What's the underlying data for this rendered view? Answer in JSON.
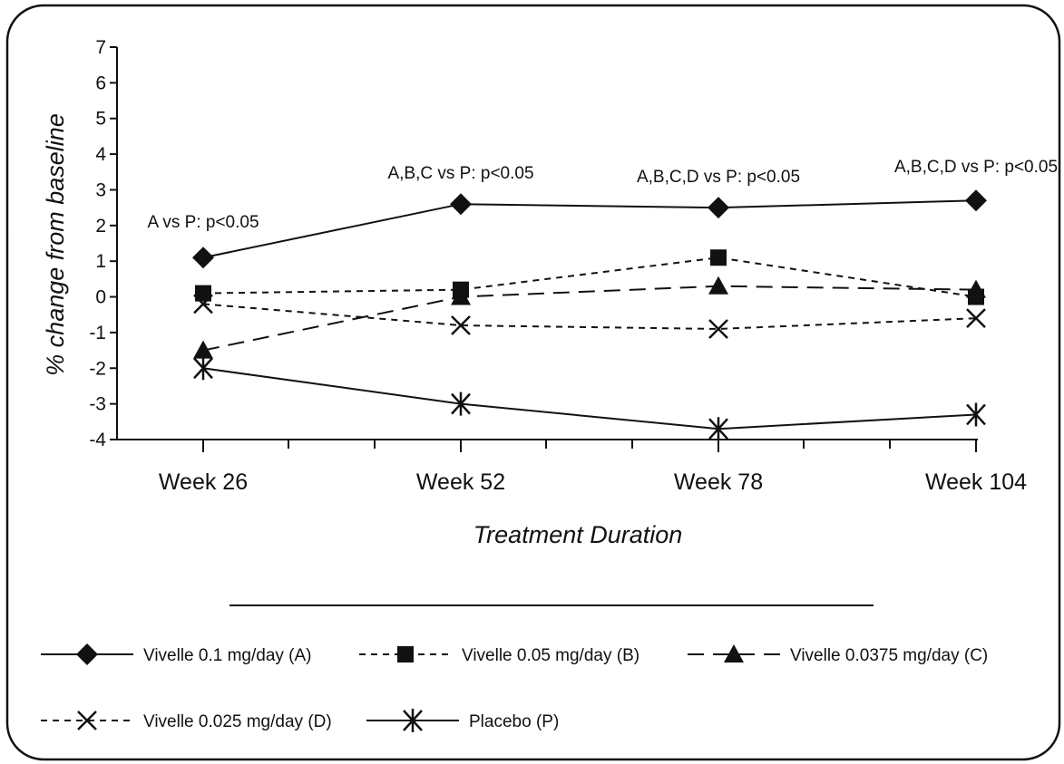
{
  "chart_data": {
    "type": "line",
    "title": "",
    "xlabel": "Treatment Duration",
    "ylabel": "% change from baseline",
    "categories": [
      "Week 26",
      "Week 52",
      "Week 78",
      "Week 104"
    ],
    "ylim": [
      -4,
      7
    ],
    "yticks": [
      7,
      6,
      5,
      4,
      3,
      2,
      1,
      0,
      -1,
      -2,
      -3,
      -4
    ],
    "grid": false,
    "legend_position": "bottom",
    "series": [
      {
        "name": "Vivelle 0.1 mg/day (A)",
        "marker": "diamond",
        "dash": "solid",
        "values": [
          1.1,
          2.6,
          2.5,
          2.7
        ]
      },
      {
        "name": "Vivelle 0.05 mg/day (B)",
        "marker": "square",
        "dash": "short-dash",
        "values": [
          0.1,
          0.2,
          1.1,
          0.0
        ]
      },
      {
        "name": "Vivelle 0.0375 mg/day (C)",
        "marker": "triangle",
        "dash": "long-dash",
        "values": [
          -1.5,
          0.0,
          0.3,
          0.2
        ]
      },
      {
        "name": "Vivelle 0.025 mg/day (D)",
        "marker": "x",
        "dash": "short-dash",
        "values": [
          -0.2,
          -0.8,
          -0.9,
          -0.6
        ]
      },
      {
        "name": "Placebo (P)",
        "marker": "asterisk",
        "dash": "solid",
        "values": [
          -2.0,
          -3.0,
          -3.7,
          -3.3
        ]
      }
    ],
    "annotations": [
      {
        "category": "Week 26",
        "text": "A vs P: p<0.05"
      },
      {
        "category": "Week 52",
        "text": "A,B,C vs P: p<0.05"
      },
      {
        "category": "Week 78",
        "text": "A,B,C,D vs P: p<0.05"
      },
      {
        "category": "Week 104",
        "text": "A,B,C,D vs P: p<0.05"
      }
    ]
  }
}
